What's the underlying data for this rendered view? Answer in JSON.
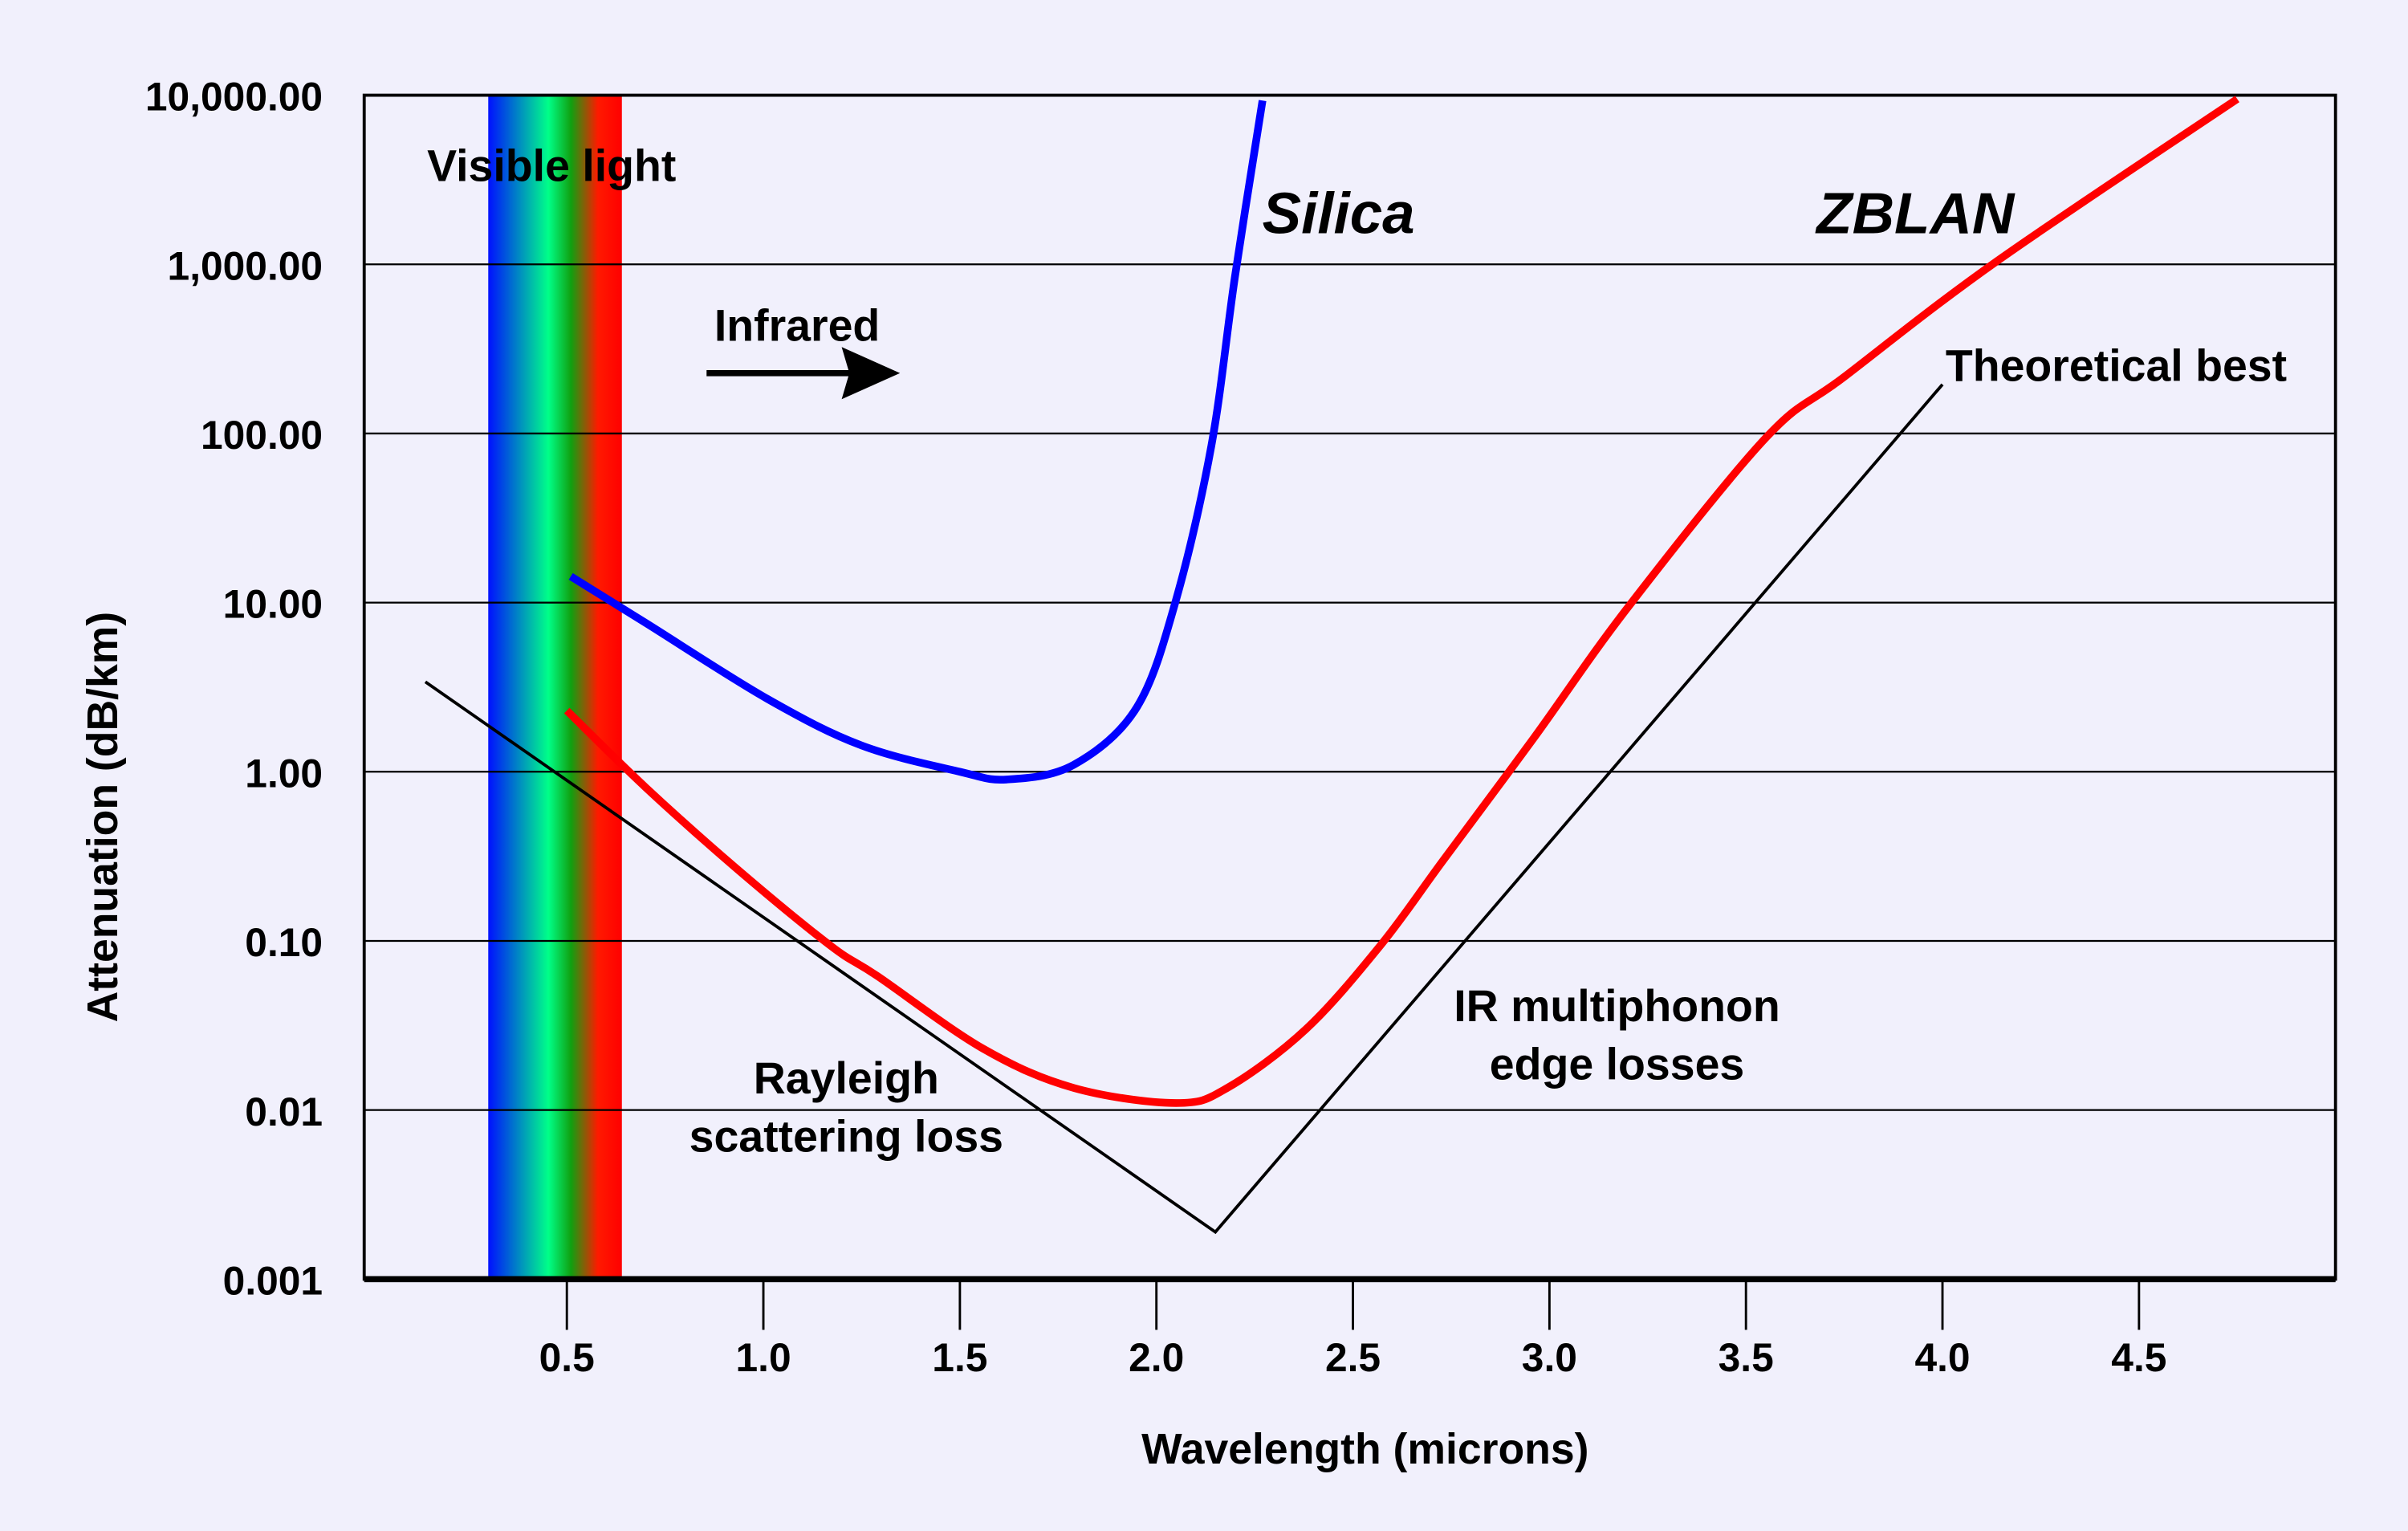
{
  "chart_data": {
    "type": "line",
    "title": "",
    "xlabel": "Wavelength (microns)",
    "ylabel": "Attenuation (dB/km)",
    "xlim": [
      0,
      5
    ],
    "ylim": [
      0.001,
      10000
    ],
    "yscale": "log",
    "grid": "horizontal",
    "x_ticks": [
      "0.5",
      "1.0",
      "1.5",
      "2.0",
      "2.5",
      "3.0",
      "3.5",
      "4.0",
      "4.5"
    ],
    "x_tick_values": [
      0.5,
      1.0,
      1.5,
      2.0,
      2.5,
      3.0,
      3.5,
      4.0,
      4.5
    ],
    "y_ticks": [
      "10,000.00",
      "1,000.00",
      "100.00",
      "10.00",
      "1.00",
      "0.10",
      "0.01",
      "0.001"
    ],
    "y_tick_values": [
      10000,
      1000,
      100,
      10,
      1,
      0.1,
      0.01,
      0.001
    ],
    "series": [
      {
        "name": "Silica",
        "color": "#0000ff",
        "x": [
          0.51,
          0.7,
          1.01,
          1.25,
          1.5,
          1.62,
          1.79,
          1.95,
          2.05,
          2.14,
          2.2,
          2.27
        ],
        "y": [
          14.3,
          7.6,
          2.7,
          1.43,
          1.0,
          0.9,
          1.1,
          2.4,
          10.4,
          85,
          850,
          9300
        ]
      },
      {
        "name": "ZBLAN",
        "color": "#ff0000",
        "x": [
          0.5,
          0.7,
          0.93,
          1.17,
          1.29,
          1.56,
          1.79,
          2.05,
          2.18,
          2.38,
          2.57,
          2.73,
          2.96,
          3.2,
          3.55,
          3.75,
          4.14,
          4.75
        ],
        "y": [
          2.3,
          0.81,
          0.27,
          0.094,
          0.062,
          0.023,
          0.0135,
          0.011,
          0.0135,
          0.03,
          0.094,
          0.3,
          1.58,
          9.4,
          94,
          216,
          1050,
          9500
        ]
      },
      {
        "name": "Theoretical best",
        "color": "#000000",
        "x": [
          0.14,
          2.15,
          4.0
        ],
        "y": [
          3.4,
          0.0019,
          195
        ]
      }
    ],
    "visible_band": {
      "label": "Visible light",
      "x_range": [
        0.3,
        0.64
      ],
      "colors": [
        "#0010ff",
        "#00ff88",
        "#ff0000"
      ]
    },
    "annotations": {
      "infrared": "Infrared",
      "rayleigh_1": "Rayleigh",
      "rayleigh_2": "scattering loss",
      "ir_1": "IR multiphonon",
      "ir_2": "edge losses",
      "theoretical": "Theoretical best",
      "silica": "Silica",
      "zblan": "ZBLAN"
    },
    "background": "#f1f0fc"
  }
}
